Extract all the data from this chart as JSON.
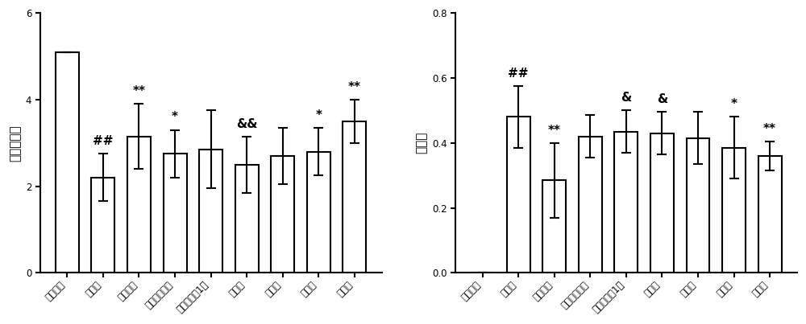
{
  "chart1": {
    "ylabel": "行为学评分",
    "ylim": [
      0,
      6
    ],
    "yticks": [
      0,
      2,
      4,
      6
    ],
    "categories": [
      "假手术组",
      "模型组",
      "尼莫地平",
      "党参总皂苷组",
      "泽川芎内酯1组",
      "冰片组",
      "低剂量",
      "中剂量",
      "高剂量"
    ],
    "values": [
      5.1,
      2.2,
      3.15,
      2.75,
      2.85,
      2.5,
      2.7,
      2.8,
      3.5
    ],
    "errors": [
      0.0,
      0.55,
      0.75,
      0.55,
      0.9,
      0.65,
      0.65,
      0.55,
      0.5
    ],
    "annotations": [
      "",
      "##",
      "**",
      "*",
      "",
      "&&",
      "",
      "*",
      "**"
    ]
  },
  "chart2": {
    "ylabel": "梗死率",
    "ylim": [
      0.0,
      0.8
    ],
    "yticks": [
      0.0,
      0.2,
      0.4,
      0.6,
      0.8
    ],
    "categories": [
      "假手术组",
      "模型组",
      "尼莫地平",
      "党参总皂苷组",
      "泽川芎内酯1组",
      "冰片组",
      "低剂量",
      "中剂量",
      "高剂量"
    ],
    "values": [
      0.0,
      0.48,
      0.285,
      0.42,
      0.435,
      0.43,
      0.415,
      0.385,
      0.36
    ],
    "errors": [
      0.0,
      0.095,
      0.115,
      0.065,
      0.065,
      0.065,
      0.08,
      0.095,
      0.045
    ],
    "annotations": [
      "",
      "##",
      "**",
      "",
      "&",
      "&",
      "",
      "*",
      "**"
    ]
  },
  "bar_color": "#ffffff",
  "bar_edgecolor": "#000000",
  "bar_linewidth": 1.5,
  "errorbar_color": "#000000",
  "errorbar_linewidth": 1.5,
  "errorbar_capsize": 4,
  "annotation_fontsize": 11,
  "tick_fontsize": 8.5,
  "ylabel_fontsize": 11,
  "background_color": "#ffffff",
  "figure_facecolor": "#ffffff"
}
